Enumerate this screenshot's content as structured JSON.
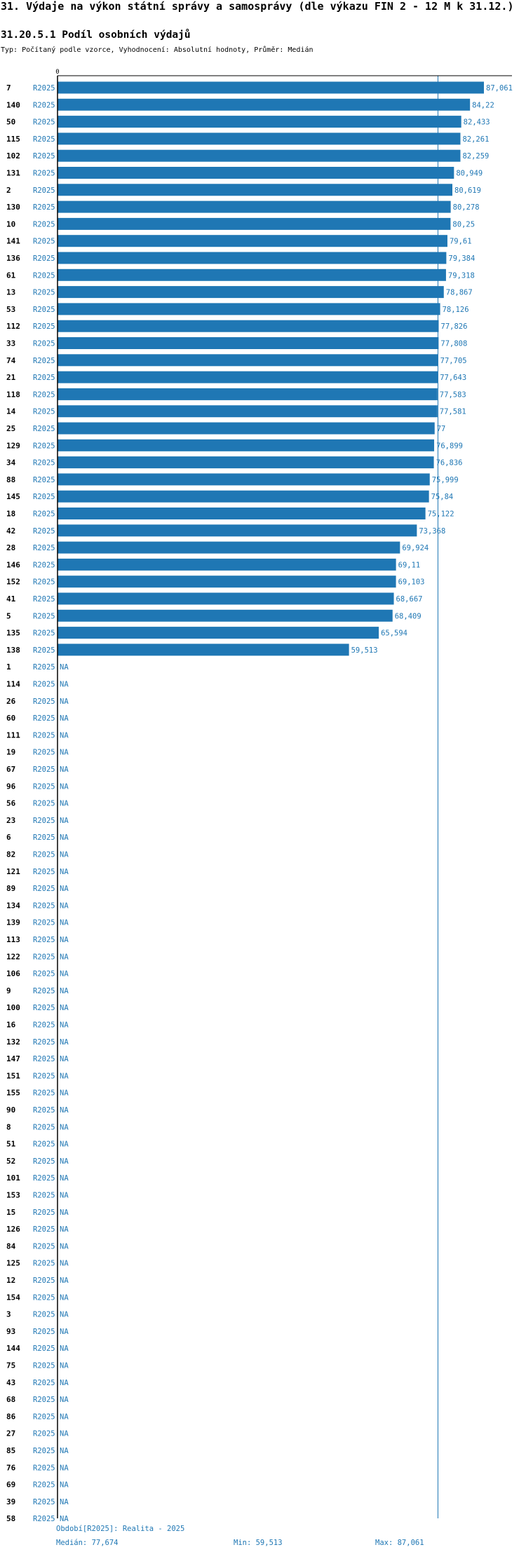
{
  "header": {
    "title": "31. Výdaje na výkon státní správy a samosprávy (dle výkazu FIN 2 - 12 M k 31.12.)",
    "subtitle": "31.20.5.1 Podíl osobních výdajů",
    "type_line": "Typ: Počítaný podle vzorce, Vyhodnocení: Absolutní hodnoty, Průměr: Medián"
  },
  "colors": {
    "bar": "#1f77b4",
    "text_blue": "#1f77b4",
    "axis": "#000000",
    "median_line": "#1f77b4"
  },
  "chart_data": {
    "type": "bar",
    "orientation": "horizontal",
    "xlim": [
      0,
      87.061
    ],
    "zero_tick_label": "0",
    "na_label": "NA",
    "median_value": 77.674,
    "series": [
      {
        "name": "R2025",
        "label": "R2025"
      }
    ],
    "rows": [
      {
        "category": "7",
        "value": 87.061,
        "label": "87,061"
      },
      {
        "category": "140",
        "value": 84.22,
        "label": "84,22"
      },
      {
        "category": "50",
        "value": 82.433,
        "label": "82,433"
      },
      {
        "category": "115",
        "value": 82.261,
        "label": "82,261"
      },
      {
        "category": "102",
        "value": 82.259,
        "label": "82,259"
      },
      {
        "category": "131",
        "value": 80.949,
        "label": "80,949"
      },
      {
        "category": "2",
        "value": 80.619,
        "label": "80,619"
      },
      {
        "category": "130",
        "value": 80.278,
        "label": "80,278"
      },
      {
        "category": "10",
        "value": 80.25,
        "label": "80,25"
      },
      {
        "category": "141",
        "value": 79.61,
        "label": "79,61"
      },
      {
        "category": "136",
        "value": 79.384,
        "label": "79,384"
      },
      {
        "category": "61",
        "value": 79.318,
        "label": "79,318"
      },
      {
        "category": "13",
        "value": 78.867,
        "label": "78,867"
      },
      {
        "category": "53",
        "value": 78.126,
        "label": "78,126"
      },
      {
        "category": "112",
        "value": 77.826,
        "label": "77,826"
      },
      {
        "category": "33",
        "value": 77.808,
        "label": "77,808"
      },
      {
        "category": "74",
        "value": 77.705,
        "label": "77,705"
      },
      {
        "category": "21",
        "value": 77.643,
        "label": "77,643"
      },
      {
        "category": "118",
        "value": 77.583,
        "label": "77,583"
      },
      {
        "category": "14",
        "value": 77.581,
        "label": "77,581"
      },
      {
        "category": "25",
        "value": 77,
        "label": "77"
      },
      {
        "category": "129",
        "value": 76.899,
        "label": "76,899"
      },
      {
        "category": "34",
        "value": 76.836,
        "label": "76,836"
      },
      {
        "category": "88",
        "value": 75.999,
        "label": "75,999"
      },
      {
        "category": "145",
        "value": 75.84,
        "label": "75,84"
      },
      {
        "category": "18",
        "value": 75.122,
        "label": "75,122"
      },
      {
        "category": "42",
        "value": 73.368,
        "label": "73,368"
      },
      {
        "category": "28",
        "value": 69.924,
        "label": "69,924"
      },
      {
        "category": "146",
        "value": 69.11,
        "label": "69,11"
      },
      {
        "category": "152",
        "value": 69.103,
        "label": "69,103"
      },
      {
        "category": "41",
        "value": 68.667,
        "label": "68,667"
      },
      {
        "category": "5",
        "value": 68.409,
        "label": "68,409"
      },
      {
        "category": "135",
        "value": 65.594,
        "label": "65,594"
      },
      {
        "category": "138",
        "value": 59.513,
        "label": "59,513"
      },
      {
        "category": "1",
        "value": null,
        "label": "NA"
      },
      {
        "category": "114",
        "value": null,
        "label": "NA"
      },
      {
        "category": "26",
        "value": null,
        "label": "NA"
      },
      {
        "category": "60",
        "value": null,
        "label": "NA"
      },
      {
        "category": "111",
        "value": null,
        "label": "NA"
      },
      {
        "category": "19",
        "value": null,
        "label": "NA"
      },
      {
        "category": "67",
        "value": null,
        "label": "NA"
      },
      {
        "category": "96",
        "value": null,
        "label": "NA"
      },
      {
        "category": "56",
        "value": null,
        "label": "NA"
      },
      {
        "category": "23",
        "value": null,
        "label": "NA"
      },
      {
        "category": "6",
        "value": null,
        "label": "NA"
      },
      {
        "category": "82",
        "value": null,
        "label": "NA"
      },
      {
        "category": "121",
        "value": null,
        "label": "NA"
      },
      {
        "category": "89",
        "value": null,
        "label": "NA"
      },
      {
        "category": "134",
        "value": null,
        "label": "NA"
      },
      {
        "category": "139",
        "value": null,
        "label": "NA"
      },
      {
        "category": "113",
        "value": null,
        "label": "NA"
      },
      {
        "category": "122",
        "value": null,
        "label": "NA"
      },
      {
        "category": "106",
        "value": null,
        "label": "NA"
      },
      {
        "category": "9",
        "value": null,
        "label": "NA"
      },
      {
        "category": "100",
        "value": null,
        "label": "NA"
      },
      {
        "category": "16",
        "value": null,
        "label": "NA"
      },
      {
        "category": "132",
        "value": null,
        "label": "NA"
      },
      {
        "category": "147",
        "value": null,
        "label": "NA"
      },
      {
        "category": "151",
        "value": null,
        "label": "NA"
      },
      {
        "category": "155",
        "value": null,
        "label": "NA"
      },
      {
        "category": "90",
        "value": null,
        "label": "NA"
      },
      {
        "category": "8",
        "value": null,
        "label": "NA"
      },
      {
        "category": "51",
        "value": null,
        "label": "NA"
      },
      {
        "category": "52",
        "value": null,
        "label": "NA"
      },
      {
        "category": "101",
        "value": null,
        "label": "NA"
      },
      {
        "category": "153",
        "value": null,
        "label": "NA"
      },
      {
        "category": "15",
        "value": null,
        "label": "NA"
      },
      {
        "category": "126",
        "value": null,
        "label": "NA"
      },
      {
        "category": "84",
        "value": null,
        "label": "NA"
      },
      {
        "category": "125",
        "value": null,
        "label": "NA"
      },
      {
        "category": "12",
        "value": null,
        "label": "NA"
      },
      {
        "category": "154",
        "value": null,
        "label": "NA"
      },
      {
        "category": "3",
        "value": null,
        "label": "NA"
      },
      {
        "category": "93",
        "value": null,
        "label": "NA"
      },
      {
        "category": "144",
        "value": null,
        "label": "NA"
      },
      {
        "category": "75",
        "value": null,
        "label": "NA"
      },
      {
        "category": "43",
        "value": null,
        "label": "NA"
      },
      {
        "category": "68",
        "value": null,
        "label": "NA"
      },
      {
        "category": "86",
        "value": null,
        "label": "NA"
      },
      {
        "category": "27",
        "value": null,
        "label": "NA"
      },
      {
        "category": "85",
        "value": null,
        "label": "NA"
      },
      {
        "category": "76",
        "value": null,
        "label": "NA"
      },
      {
        "category": "69",
        "value": null,
        "label": "NA"
      },
      {
        "category": "39",
        "value": null,
        "label": "NA"
      },
      {
        "category": "58",
        "value": null,
        "label": "NA"
      }
    ]
  },
  "footer": {
    "period": "Období[R2025]: Realita - 2025",
    "median": "Medián: 77,674",
    "min": "Min: 59,513",
    "max": "Max: 87,061"
  }
}
